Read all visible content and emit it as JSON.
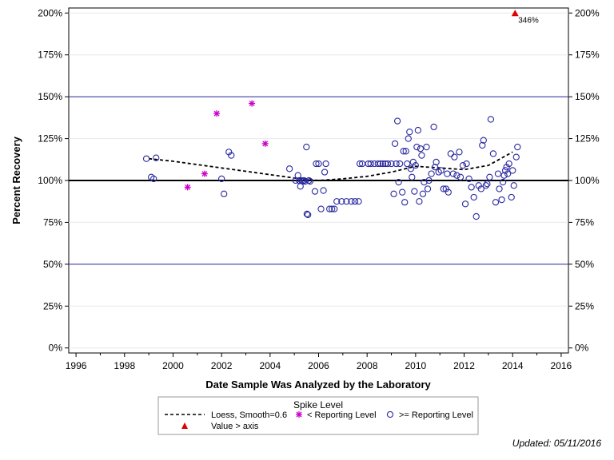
{
  "chart_data": {
    "type": "scatter",
    "xlabel": "Date Sample Was Analyzed by the Laboratory",
    "ylabel": "Percent Recovery",
    "xlim": [
      1995.7,
      2016.3
    ],
    "ylim": [
      -0.03,
      2.03
    ],
    "x_ticks": [
      1996,
      1998,
      2000,
      2002,
      2004,
      2006,
      2008,
      2010,
      2012,
      2014,
      2016
    ],
    "x_tick_labels": [
      "1996",
      "1998",
      "2000",
      "2002",
      "2004",
      "2006",
      "2008",
      "2010",
      "2012",
      "2014",
      "2016"
    ],
    "y_ticks": [
      0,
      0.25,
      0.5,
      0.75,
      1.0,
      1.25,
      1.5,
      1.75,
      2.0
    ],
    "y_tick_labels": [
      "0%",
      "25%",
      "50%",
      "75%",
      "100%",
      "125%",
      "150%",
      "175%",
      "200%"
    ],
    "reference_lines": [
      {
        "y": 0.5,
        "color": "#2a2aa0",
        "weight": "thin"
      },
      {
        "y": 1.0,
        "color": "#000000",
        "weight": "thick"
      },
      {
        "y": 1.5,
        "color": "#2a2aa0",
        "weight": "thin"
      }
    ],
    "legend": {
      "title": "Spike Level",
      "placement": "bottom",
      "entries": [
        {
          "label": "Loess, Smooth=0.6",
          "symbol": "dashed-line"
        },
        {
          "label": "< Reporting Level",
          "symbol": "asterisk"
        },
        {
          "label": ">= Reporting Level",
          "symbol": "open-circle"
        },
        {
          "label": "Value > axis",
          "symbol": "triangle"
        }
      ]
    },
    "colors": {
      "circle": "#2a2aa0",
      "asterisk": "#cc00cc",
      "triangle": "#e00000",
      "refline_thin": "#2a2aa0",
      "refline_thick": "#000000",
      "grid": "#e8e8e8"
    },
    "series": [
      {
        "name": "Loess, Smooth=0.6",
        "style": "dashed-line",
        "points": [
          [
            1999.0,
            1.13
          ],
          [
            2000.0,
            1.115
          ],
          [
            2001.0,
            1.095
          ],
          [
            2002.0,
            1.075
          ],
          [
            2003.0,
            1.055
          ],
          [
            2004.0,
            1.035
          ],
          [
            2005.0,
            1.015
          ],
          [
            2006.0,
            1.0
          ],
          [
            2007.0,
            1.01
          ],
          [
            2008.0,
            1.025
          ],
          [
            2009.0,
            1.05
          ],
          [
            2010.0,
            1.085
          ],
          [
            2011.0,
            1.075
          ],
          [
            2012.0,
            1.065
          ],
          [
            2013.0,
            1.09
          ],
          [
            2014.0,
            1.17
          ]
        ]
      },
      {
        "name": "< Reporting Level",
        "style": "asterisk",
        "points": [
          [
            2000.6,
            0.96
          ],
          [
            2001.3,
            1.04
          ],
          [
            2001.8,
            1.4
          ],
          [
            2003.25,
            1.46
          ],
          [
            2003.8,
            1.22
          ]
        ]
      },
      {
        "name": ">= Reporting Level",
        "style": "open-circle",
        "points": [
          [
            1998.9,
            1.13
          ],
          [
            1999.1,
            1.02
          ],
          [
            1999.2,
            1.01
          ],
          [
            1999.3,
            1.135
          ],
          [
            2002.0,
            1.01
          ],
          [
            2002.1,
            0.92
          ],
          [
            2002.3,
            1.17
          ],
          [
            2002.4,
            1.15
          ],
          [
            2004.8,
            1.07
          ],
          [
            2005.05,
            1.0
          ],
          [
            2005.15,
            1.03
          ],
          [
            2005.2,
            1.0
          ],
          [
            2005.25,
            0.965
          ],
          [
            2005.3,
            1.0
          ],
          [
            2005.35,
            0.995
          ],
          [
            2005.4,
            1.0
          ],
          [
            2005.45,
            0.995
          ],
          [
            2005.5,
            1.2
          ],
          [
            2005.52,
            0.8
          ],
          [
            2005.56,
            0.795
          ],
          [
            2005.6,
            1.0
          ],
          [
            2005.65,
            0.995
          ],
          [
            2005.85,
            0.935
          ],
          [
            2005.9,
            1.1
          ],
          [
            2006.0,
            1.1
          ],
          [
            2006.1,
            0.83
          ],
          [
            2006.2,
            0.94
          ],
          [
            2006.25,
            1.05
          ],
          [
            2006.3,
            1.1
          ],
          [
            2006.45,
            0.83
          ],
          [
            2006.55,
            0.83
          ],
          [
            2006.65,
            0.83
          ],
          [
            2006.75,
            0.875
          ],
          [
            2006.95,
            0.875
          ],
          [
            2007.15,
            0.875
          ],
          [
            2007.35,
            0.875
          ],
          [
            2007.5,
            0.875
          ],
          [
            2007.65,
            0.875
          ],
          [
            2007.7,
            1.1
          ],
          [
            2007.8,
            1.1
          ],
          [
            2008.05,
            1.1
          ],
          [
            2008.15,
            1.1
          ],
          [
            2008.3,
            1.1
          ],
          [
            2008.45,
            1.1
          ],
          [
            2008.55,
            1.1
          ],
          [
            2008.65,
            1.1
          ],
          [
            2008.75,
            1.1
          ],
          [
            2008.85,
            1.1
          ],
          [
            2009.0,
            1.1
          ],
          [
            2009.1,
            0.92
          ],
          [
            2009.15,
            1.22
          ],
          [
            2009.2,
            1.1
          ],
          [
            2009.25,
            1.355
          ],
          [
            2009.3,
            0.99
          ],
          [
            2009.35,
            1.1
          ],
          [
            2009.45,
            0.93
          ],
          [
            2009.5,
            1.175
          ],
          [
            2009.55,
            0.87
          ],
          [
            2009.6,
            1.175
          ],
          [
            2009.65,
            1.1
          ],
          [
            2009.7,
            1.25
          ],
          [
            2009.75,
            1.29
          ],
          [
            2009.8,
            1.07
          ],
          [
            2009.85,
            1.02
          ],
          [
            2009.9,
            1.11
          ],
          [
            2009.95,
            0.935
          ],
          [
            2010.0,
            1.09
          ],
          [
            2010.05,
            1.2
          ],
          [
            2010.1,
            1.3
          ],
          [
            2010.15,
            0.875
          ],
          [
            2010.2,
            1.19
          ],
          [
            2010.25,
            1.15
          ],
          [
            2010.3,
            0.92
          ],
          [
            2010.35,
            0.99
          ],
          [
            2010.45,
            1.2
          ],
          [
            2010.5,
            0.95
          ],
          [
            2010.55,
            1.0
          ],
          [
            2010.65,
            1.04
          ],
          [
            2010.75,
            1.32
          ],
          [
            2010.8,
            1.08
          ],
          [
            2010.85,
            1.11
          ],
          [
            2010.95,
            1.05
          ],
          [
            2011.05,
            1.06
          ],
          [
            2011.15,
            0.95
          ],
          [
            2011.25,
            0.95
          ],
          [
            2011.3,
            1.04
          ],
          [
            2011.35,
            0.93
          ],
          [
            2011.45,
            1.16
          ],
          [
            2011.55,
            1.04
          ],
          [
            2011.6,
            1.14
          ],
          [
            2011.7,
            1.03
          ],
          [
            2011.8,
            1.17
          ],
          [
            2011.85,
            1.02
          ],
          [
            2011.95,
            1.09
          ],
          [
            2012.05,
            0.86
          ],
          [
            2012.1,
            1.1
          ],
          [
            2012.2,
            1.01
          ],
          [
            2012.3,
            0.96
          ],
          [
            2012.4,
            0.9
          ],
          [
            2012.5,
            0.785
          ],
          [
            2012.6,
            0.97
          ],
          [
            2012.7,
            0.95
          ],
          [
            2012.75,
            1.21
          ],
          [
            2012.8,
            1.24
          ],
          [
            2012.9,
            0.97
          ],
          [
            2012.95,
            0.98
          ],
          [
            2013.05,
            1.02
          ],
          [
            2013.1,
            1.365
          ],
          [
            2013.2,
            1.16
          ],
          [
            2013.3,
            0.87
          ],
          [
            2013.4,
            1.04
          ],
          [
            2013.45,
            0.95
          ],
          [
            2013.55,
            0.885
          ],
          [
            2013.6,
            0.99
          ],
          [
            2013.65,
            1.03
          ],
          [
            2013.7,
            1.06
          ],
          [
            2013.75,
            1.08
          ],
          [
            2013.8,
            1.04
          ],
          [
            2013.85,
            1.1
          ],
          [
            2013.95,
            0.9
          ],
          [
            2014.0,
            1.06
          ],
          [
            2014.05,
            0.97
          ],
          [
            2014.15,
            1.14
          ],
          [
            2014.2,
            1.2
          ]
        ]
      },
      {
        "name": "Value > axis",
        "style": "triangle",
        "points": [
          [
            2014.1,
            2.0
          ]
        ],
        "annotations": [
          {
            "x": 2014.1,
            "y": 2.0,
            "text": "346%"
          }
        ]
      }
    ]
  },
  "footnote": "Updated: 05/11/2016"
}
